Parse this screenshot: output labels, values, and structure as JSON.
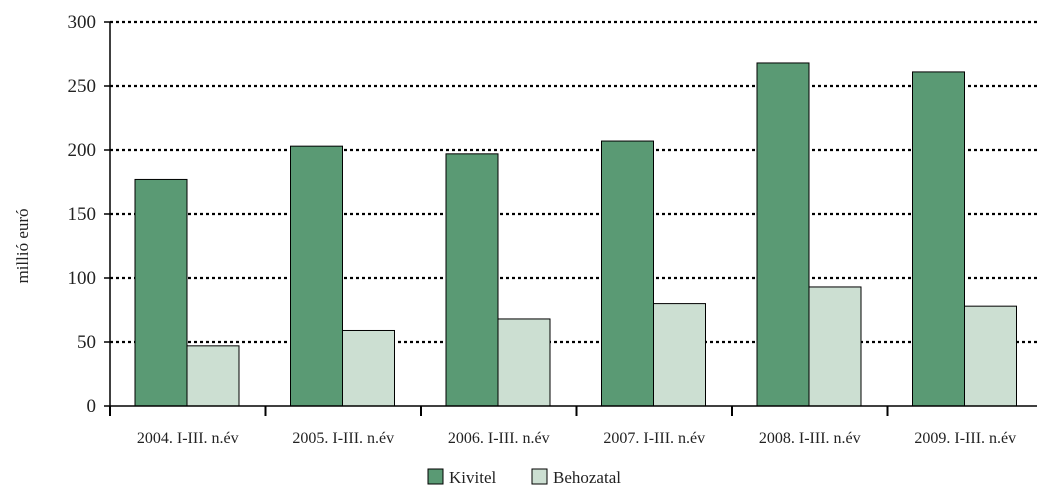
{
  "chart_data": {
    "type": "bar",
    "title": "",
    "xlabel": "",
    "ylabel": "millió euró",
    "ylim": [
      0,
      300
    ],
    "yticks": [
      0,
      50,
      100,
      150,
      200,
      250,
      300
    ],
    "grid": true,
    "legend_position": "bottom",
    "categories": [
      "2004. I-III. n.év",
      "2005. I-III. n.év",
      "2006. I-III. n.év",
      "2007. I-III. n.év",
      "2008. I-III. n.év",
      "2009. I-III. n.év"
    ],
    "series": [
      {
        "name": "Kivitel",
        "color": "#5a9a74",
        "values": [
          177,
          203,
          197,
          207,
          268,
          261
        ]
      },
      {
        "name": "Behozatal",
        "color": "#ccdfd2",
        "values": [
          47,
          59,
          68,
          80,
          93,
          78
        ]
      }
    ]
  }
}
